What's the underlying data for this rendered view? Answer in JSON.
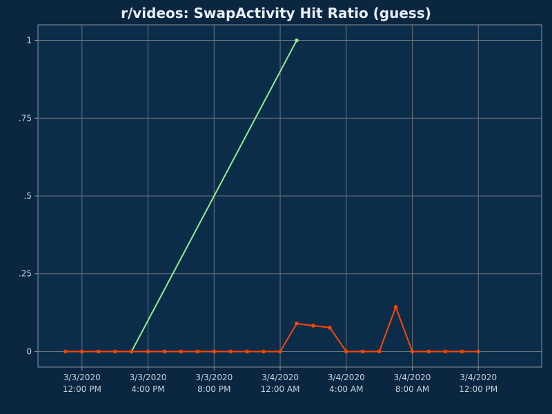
{
  "chart_data": {
    "type": "line",
    "title": "r/videos: SwapActivity Hit Ratio (guess)",
    "xlabel": "",
    "ylabel": "",
    "ylim": [
      -0.05,
      1.05
    ],
    "xlim": [
      "2020-03-03 09:20",
      "2020-03-04 15:50"
    ],
    "grid": true,
    "y_ticks": [
      {
        "value": 0,
        "label": "0"
      },
      {
        "value": 0.25,
        "label": ".25"
      },
      {
        "value": 0.5,
        "label": ".5"
      },
      {
        "value": 0.75,
        "label": ".75"
      },
      {
        "value": 1,
        "label": "1"
      }
    ],
    "x_ticks": [
      {
        "value": "2020-03-03 12:00",
        "date": "3/3/2020",
        "time": "12:00 PM"
      },
      {
        "value": "2020-03-03 16:00",
        "date": "3/3/2020",
        "time": "4:00 PM"
      },
      {
        "value": "2020-03-03 20:00",
        "date": "3/3/2020",
        "time": "8:00 PM"
      },
      {
        "value": "2020-03-04 00:00",
        "date": "3/4/2020",
        "time": "12:00 AM"
      },
      {
        "value": "2020-03-04 04:00",
        "date": "3/4/2020",
        "time": "4:00 AM"
      },
      {
        "value": "2020-03-04 08:00",
        "date": "3/4/2020",
        "time": "8:00 AM"
      },
      {
        "value": "2020-03-04 12:00",
        "date": "3/4/2020",
        "time": "12:00 PM"
      }
    ],
    "series": [
      {
        "color": "#90ee90",
        "points": [
          {
            "x": "2020-03-03 15:00",
            "y": 0
          },
          {
            "x": "2020-03-04 01:00",
            "y": 1
          }
        ]
      },
      {
        "color": "#ff4500",
        "points": [
          {
            "x": "2020-03-03 11:00",
            "y": 0
          },
          {
            "x": "2020-03-03 12:00",
            "y": 0
          },
          {
            "x": "2020-03-03 13:00",
            "y": 0
          },
          {
            "x": "2020-03-03 14:00",
            "y": 0
          },
          {
            "x": "2020-03-03 15:00",
            "y": 0
          },
          {
            "x": "2020-03-03 16:00",
            "y": 0
          },
          {
            "x": "2020-03-03 17:00",
            "y": 0
          },
          {
            "x": "2020-03-03 18:00",
            "y": 0
          },
          {
            "x": "2020-03-03 19:00",
            "y": 0
          },
          {
            "x": "2020-03-03 20:00",
            "y": 0
          },
          {
            "x": "2020-03-03 21:00",
            "y": 0
          },
          {
            "x": "2020-03-03 22:00",
            "y": 0
          },
          {
            "x": "2020-03-03 23:00",
            "y": 0
          },
          {
            "x": "2020-03-04 00:00",
            "y": 0
          },
          {
            "x": "2020-03-04 01:00",
            "y": 0.09
          },
          {
            "x": "2020-03-04 02:00",
            "y": 0.083
          },
          {
            "x": "2020-03-04 03:00",
            "y": 0.077
          },
          {
            "x": "2020-03-04 04:00",
            "y": 0
          },
          {
            "x": "2020-03-04 05:00",
            "y": 0
          },
          {
            "x": "2020-03-04 06:00",
            "y": 0
          },
          {
            "x": "2020-03-04 07:00",
            "y": 0.143
          },
          {
            "x": "2020-03-04 08:00",
            "y": 0
          },
          {
            "x": "2020-03-04 09:00",
            "y": 0
          },
          {
            "x": "2020-03-04 10:00",
            "y": 0
          },
          {
            "x": "2020-03-04 11:00",
            "y": 0
          },
          {
            "x": "2020-03-04 12:00",
            "y": 0
          }
        ]
      }
    ]
  }
}
